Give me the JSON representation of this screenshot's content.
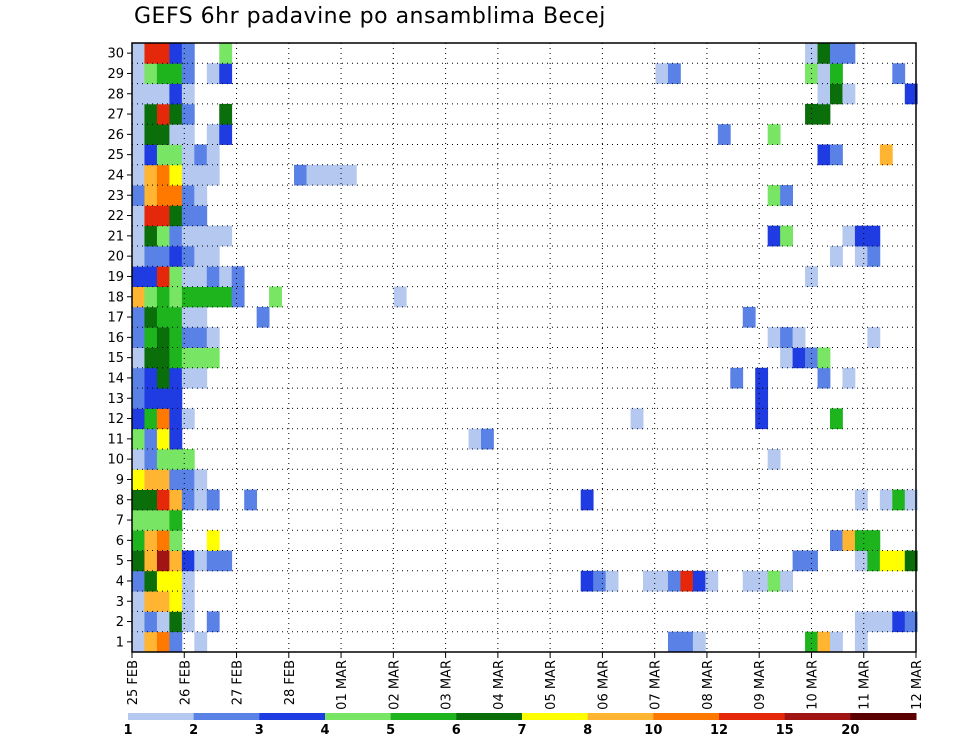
{
  "chart_data": {
    "type": "heatmap",
    "title": "GEFS 6hr padavine po ansamblima Becej",
    "ylim": [
      0,
      30
    ],
    "y_ticks": [
      "1",
      "2",
      "3",
      "4",
      "5",
      "6",
      "7",
      "8",
      "9",
      "10",
      "11",
      "12",
      "13",
      "14",
      "15",
      "16",
      "17",
      "18",
      "19",
      "20",
      "21",
      "22",
      "23",
      "24",
      "25",
      "26",
      "27",
      "28",
      "29",
      "30"
    ],
    "x_ticks": [
      "25 FEB",
      "26 FEB",
      "27 FEB",
      "28 FEB",
      "01 MAR",
      "02 MAR",
      "03 MAR",
      "04 MAR",
      "05 MAR",
      "06 MAR",
      "07 MAR",
      "08 MAR",
      "09 MAR",
      "10 MAR",
      "11 MAR",
      "12 MAR"
    ],
    "x_start": "2024-02-25 00Z",
    "step_hours": 6,
    "grid": true,
    "legend_placement": "bottom",
    "palette": [
      "#b4c8f0",
      "#5a82e6",
      "#1e3ce1",
      "#78e664",
      "#1eb41e",
      "#0a6e0a",
      "#ffff00",
      "#ffb432",
      "#ff7800",
      "#e6280a",
      "#a01414",
      "#5a0000"
    ],
    "color_scale": {
      "labels": [
        "1",
        "2",
        "3",
        "4",
        "5",
        "6",
        "7",
        "8",
        "10",
        "12",
        "15",
        "20"
      ],
      "bounds": [
        1,
        2,
        3,
        4,
        5,
        6,
        7,
        8,
        10,
        12,
        15,
        20
      ]
    },
    "values": [
      [
        [
          1,
          1.5
        ],
        [
          2,
          1.5
        ],
        [
          3,
          1.5
        ],
        [
          4,
          2.5
        ],
        [
          5,
          6.5
        ],
        [
          6,
          5.5
        ],
        [
          7,
          4.5
        ],
        [
          8,
          6.5
        ],
        [
          9,
          7.5
        ],
        [
          10,
          1.5
        ],
        [
          11,
          4.5
        ],
        [
          12,
          3.5
        ],
        [
          13,
          2.5
        ],
        [
          14,
          2.5
        ],
        [
          15,
          1.5
        ],
        [
          16,
          2.5
        ],
        [
          17,
          2.5
        ],
        [
          18,
          8.5
        ],
        [
          19,
          3.5
        ],
        [
          20,
          1.5
        ],
        [
          21,
          1.5
        ],
        [
          22,
          1.5
        ],
        [
          23,
          2.5
        ],
        [
          24,
          1.5
        ],
        [
          25,
          1.5
        ],
        [
          26,
          1.5
        ],
        [
          27,
          1.5
        ],
        [
          28,
          1.5
        ],
        [
          29,
          1.5
        ],
        [
          30,
          1.5
        ]
      ],
      [
        [
          1,
          8.5
        ],
        [
          2,
          2.5
        ],
        [
          3,
          8.5
        ],
        [
          4,
          6.5
        ],
        [
          5,
          9
        ],
        [
          6,
          8.5
        ],
        [
          7,
          4.5
        ],
        [
          8,
          6.5
        ],
        [
          9,
          8.5
        ],
        [
          10,
          2.5
        ],
        [
          11,
          2.5
        ],
        [
          12,
          5.5
        ],
        [
          13,
          3.5
        ],
        [
          14,
          3.5
        ],
        [
          15,
          6.5
        ],
        [
          16,
          5.5
        ],
        [
          17,
          6.5
        ],
        [
          18,
          4.5
        ],
        [
          19,
          3.5
        ],
        [
          20,
          2.5
        ],
        [
          21,
          6.5
        ],
        [
          22,
          13.5
        ],
        [
          23,
          8.5
        ],
        [
          24,
          8.5
        ],
        [
          25,
          3.5
        ],
        [
          26,
          6.5
        ],
        [
          27,
          6.5
        ],
        [
          28,
          1.5
        ],
        [
          29,
          4.5
        ],
        [
          30,
          13.5
        ]
      ],
      [
        [
          1,
          11
        ],
        [
          2,
          1.5
        ],
        [
          3,
          8.5
        ],
        [
          4,
          7.5
        ],
        [
          5,
          17
        ],
        [
          6,
          11
        ],
        [
          7,
          4.5
        ],
        [
          8,
          13.5
        ],
        [
          9,
          8.5
        ],
        [
          10,
          4.5
        ],
        [
          11,
          7.5
        ],
        [
          12,
          11
        ],
        [
          13,
          3.5
        ],
        [
          14,
          6.5
        ],
        [
          15,
          6.5
        ],
        [
          16,
          6.5
        ],
        [
          17,
          5.5
        ],
        [
          18,
          5.5
        ],
        [
          19,
          13.5
        ],
        [
          20,
          2.5
        ],
        [
          21,
          4.5
        ],
        [
          22,
          13.5
        ],
        [
          23,
          11
        ],
        [
          24,
          11
        ],
        [
          25,
          4.5
        ],
        [
          26,
          6.5
        ],
        [
          27,
          13.5
        ],
        [
          28,
          1.5
        ],
        [
          29,
          5.5
        ],
        [
          30,
          13.5
        ]
      ],
      [
        [
          1,
          2.5
        ],
        [
          2,
          6.5
        ],
        [
          3,
          7.5
        ],
        [
          4,
          7.5
        ],
        [
          5,
          9
        ],
        [
          6,
          4.5
        ],
        [
          7,
          5.5
        ],
        [
          8,
          9
        ],
        [
          9,
          2.5
        ],
        [
          10,
          4.5
        ],
        [
          11,
          3.5
        ],
        [
          12,
          3.5
        ],
        [
          13,
          3.5
        ],
        [
          14,
          3.5
        ],
        [
          15,
          5.5
        ],
        [
          16,
          5.5
        ],
        [
          17,
          5.5
        ],
        [
          18,
          4.5
        ],
        [
          19,
          4.5
        ],
        [
          20,
          3.5
        ],
        [
          21,
          2.5
        ],
        [
          22,
          6.5
        ],
        [
          23,
          11
        ],
        [
          24,
          7.5
        ],
        [
          25,
          4.5
        ],
        [
          26,
          1.5
        ],
        [
          27,
          6.5
        ],
        [
          28,
          3.5
        ],
        [
          29,
          5.5
        ],
        [
          30,
          3.5
        ]
      ],
      [
        [
          2,
          1.5
        ],
        [
          3,
          1.5
        ],
        [
          4,
          1.5
        ],
        [
          5,
          3.5
        ],
        [
          8,
          2.5
        ],
        [
          9,
          2.5
        ],
        [
          10,
          4.5
        ],
        [
          12,
          1.5
        ],
        [
          14,
          1.5
        ],
        [
          15,
          4.5
        ],
        [
          16,
          2.5
        ],
        [
          17,
          1.5
        ],
        [
          18,
          5.5
        ],
        [
          19,
          1.5
        ],
        [
          20,
          2.5
        ],
        [
          21,
          1.5
        ],
        [
          22,
          2.5
        ],
        [
          23,
          2.5
        ],
        [
          24,
          1.5
        ],
        [
          25,
          1.5
        ],
        [
          26,
          1.5
        ],
        [
          27,
          2.5
        ],
        [
          28,
          1.5
        ],
        [
          29,
          2.5
        ],
        [
          30,
          2.5
        ]
      ],
      [
        [
          1,
          1.5
        ],
        [
          5,
          1.5
        ],
        [
          8,
          1.5
        ],
        [
          9,
          1.5
        ],
        [
          14,
          1.5
        ],
        [
          15,
          4.5
        ],
        [
          16,
          2.5
        ],
        [
          17,
          1.5
        ],
        [
          18,
          5.5
        ],
        [
          19,
          1.5
        ],
        [
          20,
          1.5
        ],
        [
          21,
          1.5
        ],
        [
          22,
          2.5
        ],
        [
          23,
          1.5
        ],
        [
          24,
          1.5
        ],
        [
          25,
          2.5
        ]
      ],
      [
        [
          2,
          2.5
        ],
        [
          5,
          2.5
        ],
        [
          6,
          7.5
        ],
        [
          8,
          2.5
        ],
        [
          15,
          4.5
        ],
        [
          16,
          1.5
        ],
        [
          18,
          5.5
        ],
        [
          19,
          2.5
        ],
        [
          20,
          1.5
        ],
        [
          21,
          1.5
        ],
        [
          24,
          1.5
        ],
        [
          25,
          1.5
        ],
        [
          26,
          1.5
        ],
        [
          29,
          1.5
        ]
      ],
      [
        [
          5,
          2.5
        ],
        [
          18,
          5.5
        ],
        [
          19,
          1.5
        ],
        [
          21,
          1.5
        ],
        [
          26,
          3.5
        ],
        [
          27,
          6.5
        ],
        [
          29,
          3.5
        ],
        [
          30,
          4.5
        ]
      ],
      [
        [
          18,
          2.5
        ],
        [
          19,
          2.5
        ]
      ],
      [
        [
          8,
          2.5
        ]
      ],
      [
        [
          17,
          2.5
        ]
      ],
      [
        [
          18,
          4.5
        ]
      ]
    ],
    "values_note_hidden": [],
    "values_far": [
      [
        13,
        [
          [
            24,
            2.5
          ]
        ]
      ],
      [
        14,
        [
          [
            24,
            1.5
          ]
        ]
      ],
      [
        15,
        [
          [
            24,
            1.5
          ]
        ]
      ],
      [
        16,
        [
          [
            24,
            1.5
          ]
        ]
      ],
      [
        17,
        [
          [
            24,
            1.5
          ]
        ]
      ],
      [
        21,
        [
          [
            18,
            1.5
          ]
        ]
      ],
      [
        27,
        [
          [
            11,
            1.5
          ]
        ]
      ],
      [
        28,
        [
          [
            11,
            2.5
          ]
        ]
      ],
      [
        36,
        [
          [
            4,
            3.5
          ],
          [
            8,
            3.5
          ]
        ]
      ],
      [
        37,
        [
          [
            4,
            2.5
          ]
        ]
      ],
      [
        38,
        [
          [
            4,
            1.5
          ]
        ]
      ],
      [
        40,
        [
          [
            12,
            1.5
          ]
        ]
      ],
      [
        41,
        [
          [
            4,
            1.5
          ]
        ]
      ],
      [
        42,
        [
          [
            4,
            1.5
          ],
          [
            29,
            1.5
          ]
        ]
      ],
      [
        43,
        [
          [
            1,
            2.5
          ],
          [
            4,
            2.5
          ],
          [
            29,
            2.5
          ]
        ]
      ],
      [
        44,
        [
          [
            1,
            2.5
          ],
          [
            4,
            12.5
          ]
        ]
      ],
      [
        45,
        [
          [
            1,
            1.5
          ],
          [
            4,
            3.5
          ]
        ]
      ],
      [
        46,
        [
          [
            4,
            1.5
          ]
        ]
      ],
      [
        47,
        [
          [
            26,
            2.5
          ]
        ]
      ],
      [
        48,
        [
          [
            14,
            2.5
          ]
        ]
      ],
      [
        49,
        [
          [
            4,
            1.5
          ],
          [
            17,
            2.5
          ]
        ]
      ],
      [
        50,
        [
          [
            4,
            1.5
          ],
          [
            12,
            3.5
          ],
          [
            13,
            3.5
          ],
          [
            14,
            3.5
          ]
        ]
      ],
      [
        51,
        [
          [
            4,
            4.5
          ],
          [
            10,
            1.5
          ],
          [
            16,
            1.5
          ],
          [
            21,
            3.5
          ],
          [
            23,
            4.5
          ],
          [
            26,
            4.5
          ]
        ]
      ],
      [
        52,
        [
          [
            4,
            1.5
          ],
          [
            15,
            1.5
          ],
          [
            16,
            2.5
          ],
          [
            21,
            4.5
          ],
          [
            23,
            2.5
          ]
        ]
      ],
      [
        53,
        [
          [
            5,
            2.5
          ],
          [
            15,
            3.5
          ],
          [
            16,
            1.5
          ]
        ]
      ],
      [
        54,
        [
          [
            1,
            5.5
          ],
          [
            5,
            2.5
          ],
          [
            15,
            2.5
          ],
          [
            19,
            1.5
          ],
          [
            27,
            6.5
          ],
          [
            29,
            4.5
          ],
          [
            30,
            1.5
          ]
        ]
      ],
      [
        55,
        [
          [
            1,
            9
          ],
          [
            14,
            2.5
          ],
          [
            15,
            4.5
          ],
          [
            25,
            3.5
          ],
          [
            27,
            6.5
          ],
          [
            28,
            1.5
          ],
          [
            29,
            1.5
          ],
          [
            30,
            6.5
          ]
        ]
      ],
      [
        56,
        [
          [
            1,
            1.5
          ],
          [
            6,
            2.5
          ],
          [
            12,
            5.5
          ],
          [
            20,
            1.5
          ],
          [
            25,
            2.5
          ],
          [
            28,
            6.5
          ],
          [
            29,
            5.5
          ],
          [
            30,
            2.5
          ]
        ]
      ],
      [
        57,
        [
          [
            6,
            9
          ],
          [
            14,
            1.5
          ],
          [
            21,
            1.5
          ],
          [
            28,
            1.5
          ],
          [
            30,
            2.5
          ]
        ]
      ],
      [
        58,
        [
          [
            1,
            1.5
          ],
          [
            2,
            1.5
          ],
          [
            5,
            1.5
          ],
          [
            6,
            5.5
          ],
          [
            8,
            1.5
          ],
          [
            20,
            1.5
          ],
          [
            21,
            3.5
          ]
        ]
      ],
      [
        59,
        [
          [
            2,
            1.5
          ],
          [
            5,
            5.5
          ],
          [
            6,
            5.5
          ],
          [
            16,
            1.5
          ],
          [
            20,
            2.5
          ],
          [
            21,
            3.5
          ]
        ]
      ],
      [
        60,
        [
          [
            2,
            1.5
          ],
          [
            5,
            7.5
          ],
          [
            8,
            1.5
          ],
          [
            25,
            8
          ]
        ]
      ],
      [
        61,
        [
          [
            2,
            3.5
          ],
          [
            5,
            7.5
          ],
          [
            8,
            5.5
          ],
          [
            29,
            2.5
          ]
        ]
      ],
      [
        62,
        [
          [
            2,
            2.5
          ],
          [
            5,
            6.5
          ],
          [
            8,
            1.5
          ],
          [
            28,
            3.5
          ]
        ]
      ]
    ]
  }
}
